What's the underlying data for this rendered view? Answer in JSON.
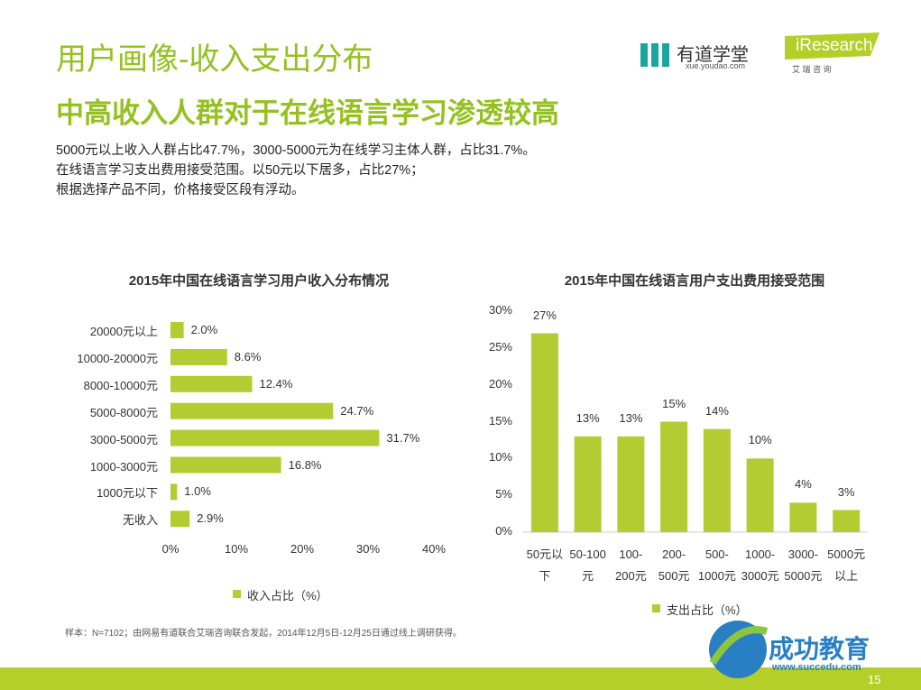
{
  "title": "用户画像-收入支出分布",
  "subtitle": "中高收入人群对于在线语言学习渗透较高",
  "bullets": [
    "5000元以上收入人群占比47.7%，3000-5000元为在线学习主体人群，占比31.7%。",
    "在线语言学习支出费用接受范围。以50元以下居多，占比27%；",
    "根据选择产品不同，价格接受区段有浮动。"
  ],
  "footnote": "样本：N=7102；由网易有道联合艾瑞咨询联合发起，2014年12月5日-12月25日通过线上调研获得。",
  "logos": {
    "youdao": "有道学堂",
    "youdao_url": "xue.youdao.com",
    "iresearch": "iResearch",
    "iresearch_cn": "艾 瑞 咨 询"
  },
  "watermark": {
    "brand": "成功教育",
    "url": "www.succedu.com"
  },
  "page_number": "15",
  "chart_data": [
    {
      "type": "bar",
      "orientation": "horizontal",
      "title": "2015年中国在线语言学习用户收入分布情况",
      "categories": [
        "20000元以上",
        "10000-20000元",
        "8000-10000元",
        "5000-8000元",
        "3000-5000元",
        "1000-3000元",
        "1000元以下",
        "无收入"
      ],
      "series": [
        {
          "name": "收入占比（%）",
          "color": "#b2cc31",
          "values": [
            2,
            8.6,
            12.4,
            24.7,
            31.7,
            16.8,
            1,
            2.9
          ],
          "value_labels": [
            "2.0%",
            "8.6%",
            "12.4%",
            "24.7%",
            "31.7%",
            "16.8%",
            "1.0%",
            "2.9%"
          ]
        }
      ],
      "xlim": [
        0,
        40
      ],
      "xticks": [
        {
          "value": 0,
          "label": "0%"
        },
        {
          "value": 10,
          "label": "10%"
        },
        {
          "value": 20,
          "label": "20%"
        },
        {
          "value": 30,
          "label": "30%"
        },
        {
          "value": 40,
          "label": "40%"
        }
      ],
      "grid": false
    },
    {
      "type": "bar",
      "orientation": "vertical",
      "title": "2015年中国在线语言用户支出费用接受范围",
      "categories": [
        "50元以\n下",
        "50-100\n元",
        "100-\n200元",
        "200-\n500元",
        "500-\n1000元",
        "1000-\n3000元",
        "3000-\n5000元",
        "5000元\n以上"
      ],
      "series": [
        {
          "name": "支出占比（%）",
          "color": "#b2cc31",
          "values": [
            27,
            13,
            13,
            15,
            14,
            10,
            4,
            3
          ],
          "value_labels": [
            "27%",
            "13%",
            "13%",
            "15%",
            "14%",
            "10%",
            "4%",
            "3%"
          ]
        }
      ],
      "ylim": [
        0,
        30
      ],
      "yticks": [
        {
          "value": 0,
          "label": "0%"
        },
        {
          "value": 5,
          "label": "5%"
        },
        {
          "value": 10,
          "label": "10%"
        },
        {
          "value": 15,
          "label": "15%"
        },
        {
          "value": 20,
          "label": "20%"
        },
        {
          "value": 25,
          "label": "25%"
        },
        {
          "value": 30,
          "label": "30%"
        }
      ],
      "grid": false
    }
  ]
}
